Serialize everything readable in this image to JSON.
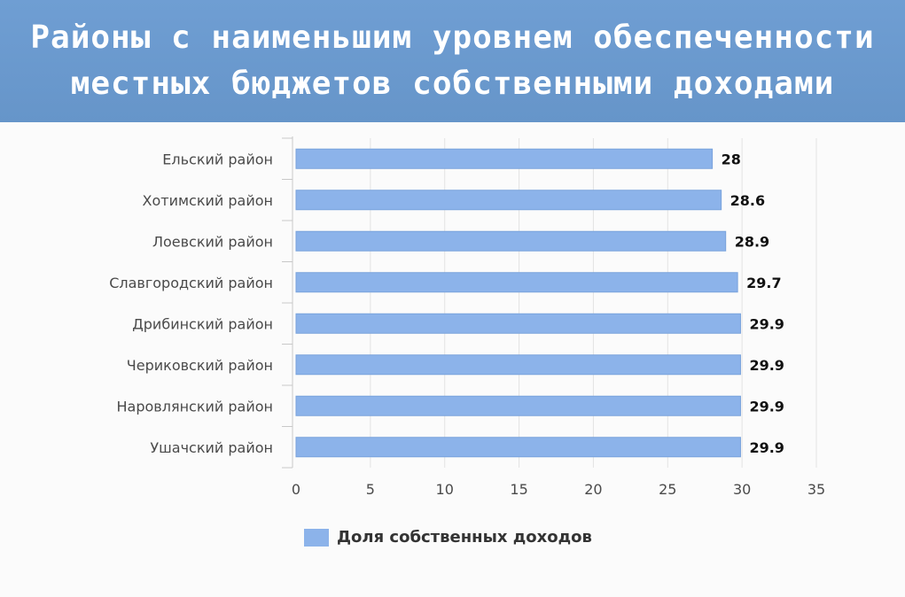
{
  "header": {
    "title_line1": "Районы с наименьшим уровнем обеспеченности",
    "title_line2": "местных бюджетов собственными доходами"
  },
  "colors": {
    "header_bg": "#6b9bd0",
    "bar": "#8cb3ea",
    "bar_edge": "#7aa3dc"
  },
  "legend": {
    "label": "Доля собственных доходов"
  },
  "chart_data": {
    "type": "bar",
    "orientation": "horizontal",
    "title": "Районы с наименьшим уровнем обеспеченности местных бюджетов собственными доходами",
    "categories": [
      "Ельский район",
      "Хотимский район",
      "Лоевский район",
      "Славгородский район",
      "Дрибинский район",
      "Чериковский район",
      "Наровлянский район",
      "Ушачский район"
    ],
    "series": [
      {
        "name": "Доля собственных доходов",
        "values": [
          28,
          28.6,
          28.9,
          29.7,
          29.9,
          29.9,
          29.9,
          29.9
        ]
      }
    ],
    "data_labels": [
      "28",
      "28.6",
      "28.9",
      "29.7",
      "29.9",
      "29.9",
      "29.9",
      "29.9"
    ],
    "xlim": [
      0,
      35
    ],
    "xticks": [
      0,
      5,
      10,
      15,
      20,
      25,
      30,
      35
    ],
    "grid": true,
    "legend_position": "bottom-left"
  }
}
